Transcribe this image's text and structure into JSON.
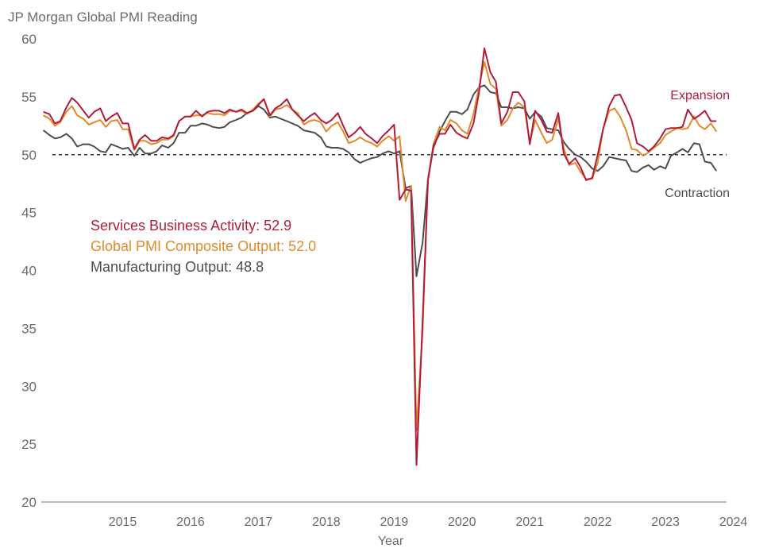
{
  "chart_data": {
    "type": "line",
    "title": "JP Morgan Global PMI Reading",
    "xlabel": "Year",
    "ylabel": "",
    "ylim": [
      20,
      60
    ],
    "yticks": [
      20,
      25,
      30,
      35,
      40,
      45,
      50,
      55,
      60
    ],
    "xlim": [
      2014.3,
      2024.4
    ],
    "xtick_values": [
      2015,
      2016,
      2017,
      2018,
      2019,
      2020,
      2021,
      2022,
      2023,
      2024
    ],
    "xtick_labels": [
      "2015",
      "2016",
      "2017",
      "2018",
      "2019",
      "2020",
      "2021",
      "2022",
      "2023",
      "2024"
    ],
    "reference_line": 50,
    "annotations": {
      "expansion": "Expansion",
      "contraction": "Contraction"
    },
    "legend": {
      "placement": "upper-left",
      "entries": [
        {
          "text": "Services Business Activity: 52.9",
          "color": "#b01c3c"
        },
        {
          "text": "Global PMI Composite Output: 52.0",
          "color": "#e08a2c"
        },
        {
          "text": "Manufacturing Output: 48.8",
          "color": "#4d4d4d"
        }
      ]
    },
    "series": [
      {
        "color": "#4d4d4d",
        "x": [
          2014.33,
          2014.42,
          2014.5,
          2014.58,
          2014.67,
          2014.75,
          2014.83,
          2014.92,
          2015.0,
          2015.08,
          2015.17,
          2015.25,
          2015.33,
          2015.42,
          2015.5,
          2015.58,
          2015.67,
          2015.75,
          2015.83,
          2015.92,
          2016.0,
          2016.08,
          2016.17,
          2016.25,
          2016.33,
          2016.42,
          2016.5,
          2016.58,
          2016.67,
          2016.75,
          2016.83,
          2016.92,
          2017.0,
          2017.08,
          2017.17,
          2017.25,
          2017.33,
          2017.42,
          2017.5,
          2017.58,
          2017.67,
          2017.75,
          2017.83,
          2017.92,
          2018.0,
          2018.08,
          2018.17,
          2018.25,
          2018.33,
          2018.42,
          2018.5,
          2018.58,
          2018.67,
          2018.75,
          2018.83,
          2018.92,
          2019.0,
          2019.08,
          2019.17,
          2019.25,
          2019.33,
          2019.42,
          2019.5,
          2019.58,
          2019.67,
          2019.75,
          2019.83,
          2019.92,
          2020.0,
          2020.08,
          2020.17,
          2020.25,
          2020.33,
          2020.42,
          2020.5,
          2020.58,
          2020.67,
          2020.75,
          2020.83,
          2020.92,
          2021.0,
          2021.08,
          2021.17,
          2021.25,
          2021.33,
          2021.42,
          2021.5,
          2021.58,
          2021.67,
          2021.75,
          2021.83,
          2021.92,
          2022.0,
          2022.08,
          2022.17,
          2022.25,
          2022.33,
          2022.42,
          2022.5,
          2022.58,
          2022.67,
          2022.75,
          2022.83,
          2022.92,
          2023.0,
          2023.08,
          2023.17,
          2023.25,
          2023.33,
          2023.42,
          2023.5,
          2023.58,
          2023.67,
          2023.75,
          2023.83,
          2023.92,
          2024.0,
          2024.08,
          2024.17,
          2024.25
        ],
        "values": [
          52.1,
          51.7,
          51.4,
          51.5,
          51.8,
          51.4,
          50.7,
          50.9,
          50.9,
          50.7,
          50.3,
          50.2,
          50.9,
          50.7,
          50.5,
          50.6,
          49.9,
          50.6,
          50.1,
          50.1,
          50.3,
          50.8,
          50.6,
          51.0,
          51.9,
          51.9,
          52.5,
          52.5,
          52.7,
          52.6,
          52.4,
          52.3,
          52.4,
          52.8,
          53.0,
          53.2,
          53.6,
          53.8,
          54.2,
          53.9,
          53.2,
          53.3,
          53.1,
          52.9,
          52.7,
          52.5,
          52.1,
          52.0,
          51.9,
          51.5,
          50.7,
          50.6,
          50.6,
          50.5,
          50.2,
          49.6,
          49.3,
          49.5,
          49.7,
          49.8,
          50.1,
          50.3,
          50.1,
          50.3,
          47.1,
          47.3,
          39.5,
          42.4,
          47.9,
          50.6,
          52.0,
          52.9,
          53.7,
          53.7,
          53.5,
          53.9,
          55.2,
          55.8,
          56.0,
          55.4,
          55.3,
          54.1,
          54.1,
          54.0,
          54.1,
          54.0,
          53.1,
          53.7,
          53.3,
          52.3,
          52.2,
          52.1,
          51.1,
          50.5,
          50.0,
          49.8,
          49.4,
          48.8,
          48.6,
          49.0,
          49.8,
          49.7,
          49.6,
          49.5,
          48.6,
          48.5,
          48.9,
          49.1,
          48.7,
          49.0,
          48.8,
          49.9,
          50.2,
          50.5,
          50.2,
          51.0,
          50.9,
          49.4,
          49.3,
          48.6
        ]
      },
      {
        "color": "#e08a2c",
        "x": [
          2014.33,
          2014.42,
          2014.5,
          2014.58,
          2014.67,
          2014.75,
          2014.83,
          2014.92,
          2015.0,
          2015.08,
          2015.17,
          2015.25,
          2015.33,
          2015.42,
          2015.5,
          2015.58,
          2015.67,
          2015.75,
          2015.83,
          2015.92,
          2016.0,
          2016.08,
          2016.17,
          2016.25,
          2016.33,
          2016.42,
          2016.5,
          2016.58,
          2016.67,
          2016.75,
          2016.83,
          2016.92,
          2017.0,
          2017.08,
          2017.17,
          2017.25,
          2017.33,
          2017.42,
          2017.5,
          2017.58,
          2017.67,
          2017.75,
          2017.83,
          2017.92,
          2018.0,
          2018.08,
          2018.17,
          2018.25,
          2018.33,
          2018.42,
          2018.5,
          2018.58,
          2018.67,
          2018.75,
          2018.83,
          2018.92,
          2019.0,
          2019.08,
          2019.17,
          2019.25,
          2019.33,
          2019.42,
          2019.5,
          2019.58,
          2019.67,
          2019.75,
          2019.83,
          2019.92,
          2020.0,
          2020.08,
          2020.17,
          2020.25,
          2020.33,
          2020.42,
          2020.5,
          2020.58,
          2020.67,
          2020.75,
          2020.83,
          2020.92,
          2021.0,
          2021.08,
          2021.17,
          2021.25,
          2021.33,
          2021.42,
          2021.5,
          2021.58,
          2021.67,
          2021.75,
          2021.83,
          2021.92,
          2022.0,
          2022.08,
          2022.17,
          2022.25,
          2022.33,
          2022.42,
          2022.5,
          2022.58,
          2022.67,
          2022.75,
          2022.83,
          2022.92,
          2023.0,
          2023.08,
          2023.17,
          2023.25,
          2023.33,
          2023.42,
          2023.5,
          2023.58,
          2023.67,
          2023.75,
          2023.83,
          2023.92,
          2024.0,
          2024.08,
          2024.17,
          2024.25
        ],
        "values": [
          53.4,
          53.1,
          52.5,
          52.8,
          53.7,
          54.2,
          53.4,
          53.1,
          52.6,
          52.8,
          53.0,
          52.4,
          52.9,
          53.0,
          52.2,
          52.2,
          50.4,
          51.2,
          51.2,
          50.9,
          51.0,
          51.3,
          51.3,
          51.6,
          52.9,
          53.3,
          53.3,
          53.4,
          53.4,
          53.6,
          53.5,
          53.5,
          53.4,
          53.8,
          53.7,
          53.8,
          53.5,
          53.9,
          54.4,
          54.8,
          53.3,
          53.9,
          54.0,
          54.3,
          53.9,
          53.6,
          52.6,
          52.9,
          53.0,
          52.8,
          52.0,
          52.5,
          52.8,
          52.0,
          51.0,
          51.2,
          51.5,
          51.2,
          51.0,
          50.7,
          51.2,
          51.6,
          51.2,
          51.6,
          46.0,
          47.3,
          26.2,
          34.7,
          47.9,
          50.9,
          52.4,
          52.1,
          53.0,
          52.7,
          52.1,
          51.8,
          53.5,
          55.8,
          58.0,
          56.1,
          55.7,
          52.5,
          53.0,
          54.0,
          54.5,
          54.1,
          51.0,
          53.0,
          51.9,
          51.0,
          51.3,
          53.1,
          50.6,
          49.1,
          49.3,
          48.5,
          47.9,
          47.9,
          49.3,
          52.2,
          53.8,
          54.0,
          53.3,
          52.1,
          50.5,
          50.4,
          49.9,
          50.2,
          50.6,
          51.0,
          51.7,
          52.0,
          52.3,
          52.2,
          52.3,
          53.3,
          52.5,
          52.2,
          52.7,
          52.0
        ]
      },
      {
        "color": "#b01c3c",
        "x": [
          2014.33,
          2014.42,
          2014.5,
          2014.58,
          2014.67,
          2014.75,
          2014.83,
          2014.92,
          2015.0,
          2015.08,
          2015.17,
          2015.25,
          2015.33,
          2015.42,
          2015.5,
          2015.58,
          2015.67,
          2015.75,
          2015.83,
          2015.92,
          2016.0,
          2016.08,
          2016.17,
          2016.25,
          2016.33,
          2016.42,
          2016.5,
          2016.58,
          2016.67,
          2016.75,
          2016.83,
          2016.92,
          2017.0,
          2017.08,
          2017.17,
          2017.25,
          2017.33,
          2017.42,
          2017.5,
          2017.58,
          2017.67,
          2017.75,
          2017.83,
          2017.92,
          2018.0,
          2018.08,
          2018.17,
          2018.25,
          2018.33,
          2018.42,
          2018.5,
          2018.58,
          2018.67,
          2018.75,
          2018.83,
          2018.92,
          2019.0,
          2019.08,
          2019.17,
          2019.25,
          2019.33,
          2019.42,
          2019.5,
          2019.58,
          2019.67,
          2019.75,
          2019.83,
          2019.92,
          2020.0,
          2020.08,
          2020.17,
          2020.25,
          2020.33,
          2020.42,
          2020.5,
          2020.58,
          2020.67,
          2020.75,
          2020.83,
          2020.92,
          2021.0,
          2021.08,
          2021.17,
          2021.25,
          2021.33,
          2021.42,
          2021.5,
          2021.58,
          2021.67,
          2021.75,
          2021.83,
          2021.92,
          2022.0,
          2022.08,
          2022.17,
          2022.25,
          2022.33,
          2022.42,
          2022.5,
          2022.58,
          2022.67,
          2022.75,
          2022.83,
          2022.92,
          2023.0,
          2023.08,
          2023.17,
          2023.25,
          2023.33,
          2023.42,
          2023.5,
          2023.58,
          2023.67,
          2023.75,
          2023.83,
          2023.92,
          2024.0,
          2024.08,
          2024.17,
          2024.25
        ],
        "values": [
          53.7,
          53.5,
          52.7,
          52.9,
          54.1,
          54.9,
          54.5,
          53.8,
          53.2,
          53.7,
          54.0,
          52.9,
          53.3,
          53.6,
          52.7,
          52.7,
          50.5,
          51.3,
          51.7,
          51.2,
          51.2,
          51.5,
          51.4,
          51.7,
          52.9,
          53.3,
          53.3,
          53.8,
          53.3,
          53.7,
          53.8,
          53.8,
          53.6,
          53.9,
          53.7,
          53.9,
          53.6,
          53.8,
          54.3,
          54.8,
          53.4,
          54.0,
          54.3,
          54.8,
          53.9,
          53.4,
          52.9,
          53.3,
          53.6,
          53.0,
          52.7,
          53.0,
          53.6,
          52.5,
          51.5,
          51.9,
          52.4,
          51.8,
          51.4,
          51.0,
          51.6,
          52.1,
          52.6,
          46.1,
          47.0,
          46.9,
          23.2,
          35.6,
          47.8,
          50.8,
          51.8,
          51.8,
          52.6,
          51.9,
          51.6,
          51.4,
          52.7,
          55.3,
          59.2,
          57.1,
          56.3,
          52.7,
          53.7,
          55.4,
          55.4,
          54.6,
          50.9,
          53.8,
          53.0,
          52.0,
          51.9,
          53.6,
          50.1,
          49.2,
          49.7,
          48.9,
          47.8,
          48.0,
          50.0,
          52.2,
          54.2,
          55.1,
          55.2,
          54.1,
          53.0,
          51.0,
          50.7,
          50.3,
          50.7,
          51.4,
          52.2,
          52.3,
          52.3,
          52.4,
          53.9,
          53.1,
          53.4,
          53.8,
          52.9,
          52.9
        ]
      }
    ]
  }
}
